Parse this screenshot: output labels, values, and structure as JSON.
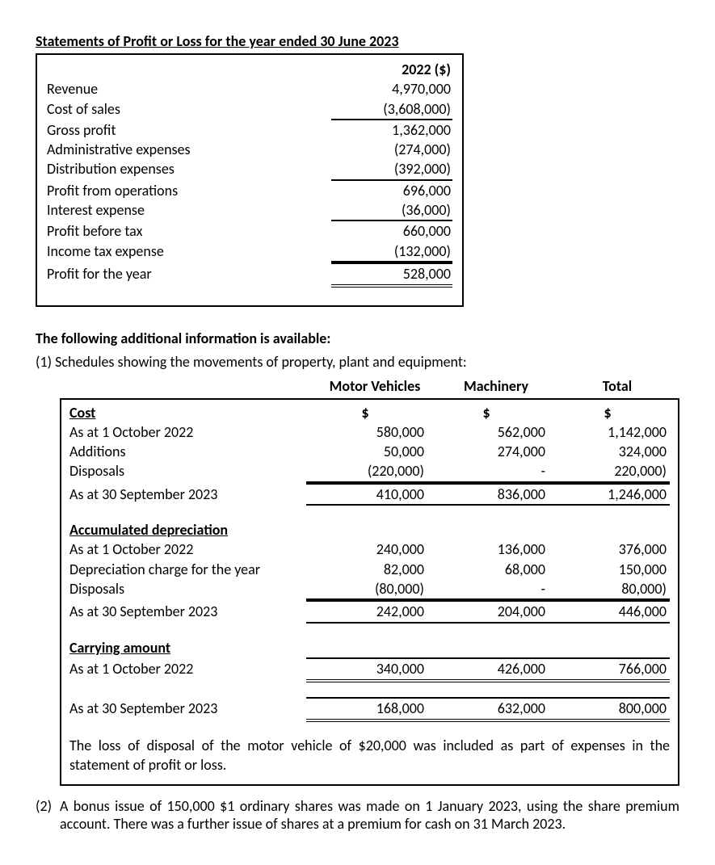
{
  "title": "Statements of Profit or Loss for the year ended 30 June 2023",
  "pl": {
    "year_header": "2022 ($)",
    "rows": [
      {
        "label": "Revenue",
        "value": "4,970,000",
        "underline": false
      },
      {
        "label": "Cost of sales",
        "value": "(3,608,000)",
        "underline": true
      },
      {
        "label": "Gross profit",
        "value": "1,362,000",
        "underline": false
      },
      {
        "label": "Administrative expenses",
        "value": "(274,000)",
        "underline": false
      },
      {
        "label": "Distribution expenses",
        "value": "(392,000)",
        "underline": true
      },
      {
        "label": "Profit from operations",
        "value": "696,000",
        "underline": false
      },
      {
        "label": "Interest expense",
        "value": "(36,000)",
        "underline": true
      },
      {
        "label": "Profit before tax",
        "value": "660,000",
        "underline": false
      },
      {
        "label": "Income tax expense",
        "value": "(132,000)",
        "underline": true
      },
      {
        "label": "Profit for the year",
        "value": "528,000",
        "double": true
      }
    ]
  },
  "addl_heading": "The following additional information is available:",
  "sched_intro_num": "(1)",
  "sched_intro": "Schedules showing the movements of property, plant and equipment:",
  "ppe": {
    "headers": {
      "c1": "Motor Vehicles",
      "c2": "Machinery",
      "c3": "Total"
    },
    "subheaders": {
      "c1": "$",
      "c2": "$",
      "c3": "$"
    },
    "groups": [
      {
        "title": "Cost",
        "rows": [
          {
            "label": "As at 1 October 2022",
            "c1": "580,000",
            "c2": "562,000",
            "c3": "1,142,000"
          },
          {
            "label": "Additions",
            "c1": "50,000",
            "c2": "274,000",
            "c3": "324,000"
          },
          {
            "label": "Disposals",
            "c1": "(220,000)",
            "c2": "-",
            "c3": "220,000)",
            "underline": true
          },
          {
            "label": "As at 30 September 2023",
            "c1": "410,000",
            "c2": "836,000",
            "c3": "1,246,000",
            "topline": true,
            "underline": true
          }
        ]
      },
      {
        "title": "Accumulated depreciation",
        "rows": [
          {
            "label": "As at 1 October 2022",
            "c1": "240,000",
            "c2": "136,000",
            "c3": "376,000"
          },
          {
            "label": "Depreciation charge for the year",
            "c1": "82,000",
            "c2": "68,000",
            "c3": "150,000"
          },
          {
            "label": "Disposals",
            "c1": "(80,000)",
            "c2": "-",
            "c3": "80,000)",
            "underline": true
          },
          {
            "label": "As at 30 September 2023",
            "c1": "242,000",
            "c2": "204,000",
            "c3": "446,000",
            "topline": true,
            "underline": true
          }
        ]
      },
      {
        "title": "Carrying amount",
        "rows": [
          {
            "label": "As at 1 October 2022",
            "c1": "340,000",
            "c2": "426,000",
            "c3": "766,000",
            "double": true
          }
        ]
      },
      {
        "title": "",
        "rows": [
          {
            "label": "As at 30 September 2023",
            "c1": "168,000",
            "c2": "632,000",
            "c3": "800,000",
            "double": true
          }
        ]
      }
    ],
    "note": "The loss of disposal of the motor vehicle of $20,000 was included as part of expenses in the statement of profit or loss."
  },
  "item2_num": "(2)",
  "item2": "A bonus issue of 150,000 $1 ordinary shares was made on 1 January 2023, using the share premium account.  There was a further issue of shares at a premium for cash on 31 March 2023."
}
